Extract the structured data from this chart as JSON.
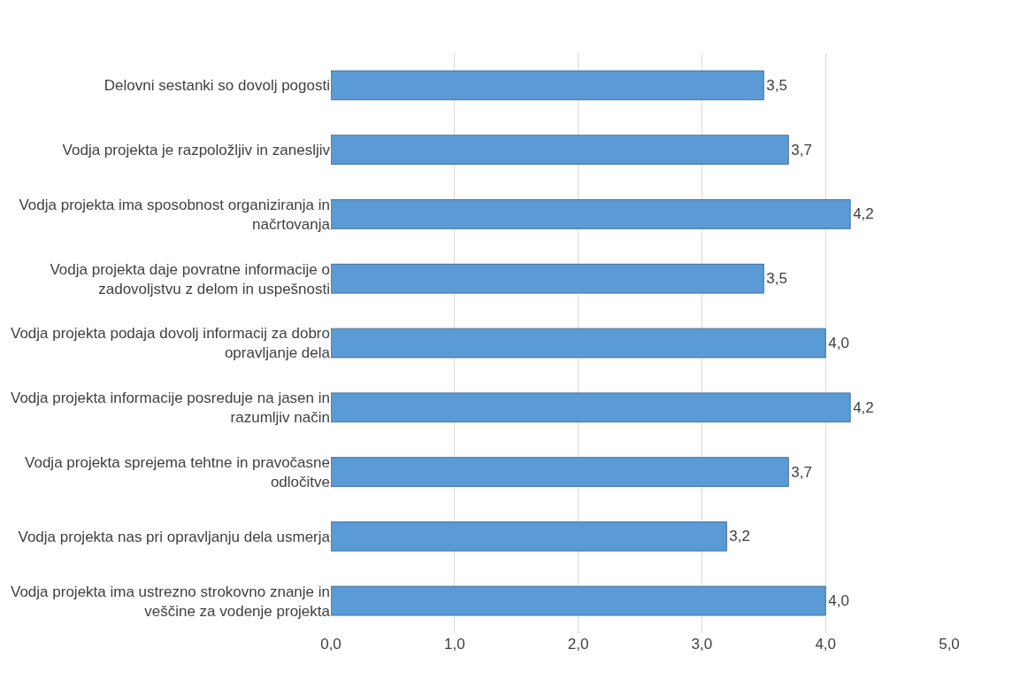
{
  "chart_data": {
    "type": "bar",
    "orientation": "horizontal",
    "categories": [
      "Delovni sestanki so dovolj pogosti",
      "Vodja projekta je razpoložljiv in zanesljiv",
      "Vodja projekta ima sposobnost organiziranja in načrtovanja",
      "Vodja projekta daje povratne informacije o zadovoljstvu z delom in uspešnosti",
      "Vodja projekta podaja dovolj informacij za dobro opravljanje dela",
      "Vodja projekta informacije posreduje na jasen in razumljiv način",
      "Vodja projekta sprejema tehtne in pravočasne odločitve",
      "Vodja projekta nas pri opravljanju dela usmerja",
      "Vodja projekta ima ustrezno strokovno znanje in veščine za vodenje projekta"
    ],
    "values": [
      3.5,
      3.7,
      4.2,
      3.5,
      4.0,
      4.2,
      3.7,
      3.2,
      4.0
    ],
    "value_labels": [
      "3,5",
      "3,7",
      "4,2",
      "3,5",
      "4,0",
      "4,2",
      "3,7",
      "3,2",
      "4,0"
    ],
    "color": "#5b9bd5",
    "xlim": [
      0,
      5
    ],
    "xticks": [
      {
        "value": 0,
        "label": "0,0"
      },
      {
        "value": 1,
        "label": "1,0"
      },
      {
        "value": 2,
        "label": "2,0"
      },
      {
        "value": 3,
        "label": "3,0"
      },
      {
        "value": 4,
        "label": "4,0"
      },
      {
        "value": 5,
        "label": "5,0"
      }
    ],
    "grid": "x"
  }
}
